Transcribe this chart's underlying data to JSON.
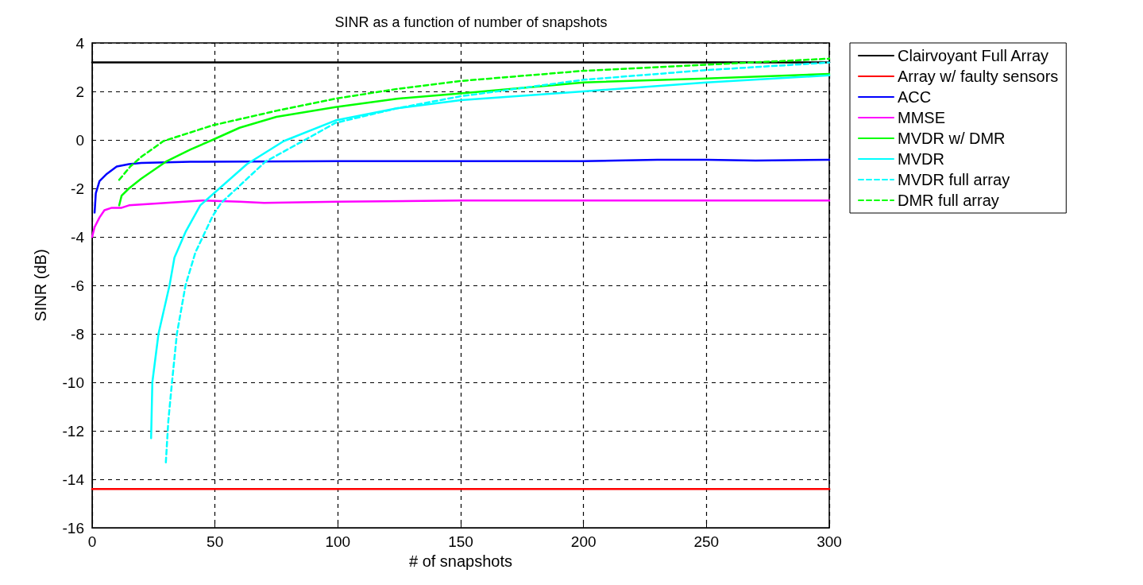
{
  "chart_data": {
    "type": "line",
    "title": "SINR as a function of number of snapshots",
    "xlabel": "# of snapshots",
    "ylabel": "SINR (dB)",
    "xlim": [
      0,
      300
    ],
    "xticks": [
      0,
      50,
      100,
      150,
      200,
      250,
      300
    ],
    "ylim": [
      -16,
      4
    ],
    "yticks": [
      -16,
      -14,
      -12,
      -10,
      -8,
      -6,
      -4,
      -2,
      0,
      2,
      4
    ],
    "grid": true,
    "legend": "top right",
    "marker": "none",
    "series": [
      {
        "name": "Clairvoyant Full Array",
        "color": "#000000",
        "line_style": "solid",
        "x": [
          0,
          300
        ],
        "values": [
          3.2,
          3.2
        ]
      },
      {
        "name": "Array w/ faulty sensors",
        "color": "#ff0000",
        "line_style": "solid",
        "x": [
          0,
          300
        ],
        "values": [
          -14.4,
          -14.4
        ]
      },
      {
        "name": "ACC",
        "color": "#0000ff",
        "line_style": "solid",
        "x": [
          1,
          1.5,
          3,
          6,
          10,
          15,
          20,
          40,
          100,
          200,
          230,
          250,
          270,
          300
        ],
        "values": [
          -3,
          -2.2,
          -1.7,
          -1.4,
          -1.1,
          -1.0,
          -0.95,
          -0.9,
          -0.88,
          -0.88,
          -0.82,
          -0.82,
          -0.85,
          -0.82
        ]
      },
      {
        "name": "MMSE",
        "color": "#ff00ff",
        "line_style": "solid",
        "x": [
          0,
          1,
          3,
          5,
          8,
          12,
          15,
          30,
          45,
          60,
          70,
          100,
          150,
          200,
          250,
          300
        ],
        "values": [
          -4.0,
          -3.6,
          -3.2,
          -2.9,
          -2.8,
          -2.8,
          -2.7,
          -2.6,
          -2.5,
          -2.55,
          -2.6,
          -2.55,
          -2.5,
          -2.5,
          -2.5,
          -2.5
        ]
      },
      {
        "name": "MVDR w/ DMR",
        "color": "#00ff00",
        "line_style": "solid",
        "x": [
          11,
          12,
          15,
          20,
          30,
          40,
          49,
          60,
          75,
          99,
          124,
          150,
          200,
          250,
          300
        ],
        "values": [
          -2.7,
          -2.3,
          -2.0,
          -1.6,
          -0.9,
          -0.4,
          0.0,
          0.5,
          0.95,
          1.35,
          1.7,
          1.92,
          2.37,
          2.53,
          2.72
        ]
      },
      {
        "name": "MVDR",
        "color": "#00ffff",
        "line_style": "solid",
        "x": [
          24,
          24.5,
          27,
          31.5,
          33.5,
          38,
          44,
          63,
          78,
          99,
          124,
          150,
          200,
          250,
          300
        ],
        "values": [
          -12.3,
          -10,
          -8,
          -6,
          -4.85,
          -3.8,
          -2.7,
          -1.0,
          -0.05,
          0.8,
          1.3,
          1.64,
          2.0,
          2.37,
          2.66
        ]
      },
      {
        "name": "MVDR full array",
        "color": "#00ffff",
        "line_style": "dashed",
        "x": [
          30,
          31,
          32.5,
          34.5,
          38,
          42,
          49,
          52.5,
          70.5,
          87.5,
          99,
          124,
          150,
          200,
          250,
          300
        ],
        "values": [
          -13.3,
          -11.6,
          -10,
          -8,
          -6,
          -4.65,
          -3.15,
          -2.6,
          -0.9,
          0.05,
          0.7,
          1.3,
          1.8,
          2.48,
          2.88,
          3.19
        ]
      },
      {
        "name": "DMR full array",
        "color": "#00ff00",
        "line_style": "dashed",
        "x": [
          11,
          15.5,
          20,
          29,
          49,
          75,
          99,
          124,
          150,
          200,
          250,
          300
        ],
        "values": [
          -1.65,
          -1.1,
          -0.7,
          -0.05,
          0.6,
          1.2,
          1.7,
          2.1,
          2.43,
          2.85,
          3.1,
          3.35
        ]
      }
    ]
  }
}
